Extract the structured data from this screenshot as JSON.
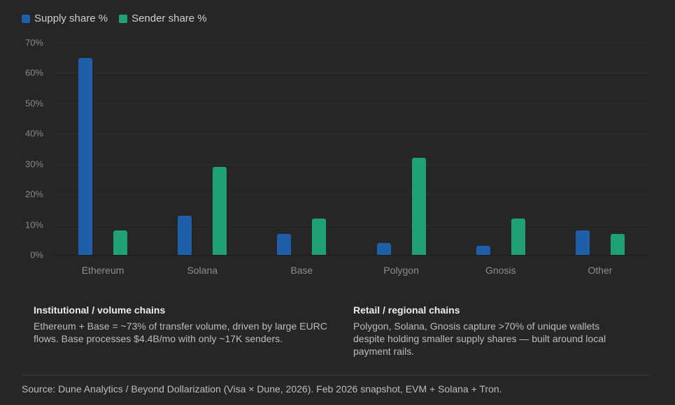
{
  "legend": [
    {
      "label": "Supply share %",
      "color": "#1f5fa8"
    },
    {
      "label": "Sender share %",
      "color": "#1fa077"
    }
  ],
  "y_ticks": [
    "70%",
    "60%",
    "50%",
    "40%",
    "30%",
    "20%",
    "10%",
    "0%"
  ],
  "notes": [
    {
      "title": "Institutional / volume chains",
      "body": "Ethereum + Base = ~73% of transfer volume, driven by large EURC flows. Base processes $4.4B/mo with only ~17K senders."
    },
    {
      "title": "Retail / regional chains",
      "body": "Polygon, Solana, Gnosis capture >70% of unique wallets despite holding smaller supply shares — built around local payment rails."
    }
  ],
  "source": "Source: Dune Analytics / Beyond Dollarization (Visa × Dune, 2026). Feb 2026 snapshot, EVM + Solana + Tron.",
  "chart_data": {
    "type": "bar",
    "title": "",
    "xlabel": "",
    "ylabel": "",
    "categories": [
      "Ethereum",
      "Solana",
      "Base",
      "Polygon",
      "Gnosis",
      "Other"
    ],
    "series": [
      {
        "name": "Supply share %",
        "color": "#1f5fa8",
        "values": [
          65,
          13,
          7,
          4,
          3,
          8
        ]
      },
      {
        "name": "Sender share %",
        "color": "#1fa077",
        "values": [
          8,
          29,
          12,
          32,
          12,
          7
        ]
      }
    ],
    "ylim": [
      0,
      70
    ],
    "y_tick_step": 10,
    "grid": true,
    "legend_position": "top-left"
  }
}
